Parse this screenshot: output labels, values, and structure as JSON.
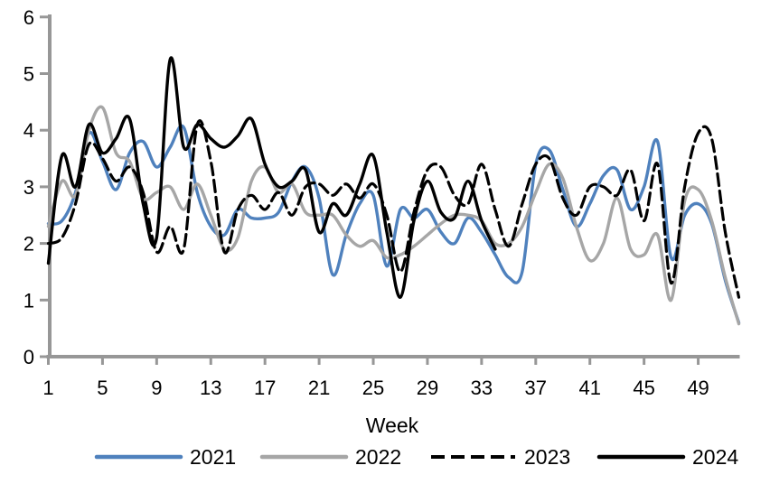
{
  "chart_data": {
    "type": "line",
    "title": "",
    "xlabel": "Week",
    "ylabel": "",
    "x_ticks": [
      1,
      5,
      9,
      13,
      17,
      21,
      25,
      29,
      33,
      37,
      41,
      45,
      49
    ],
    "y_ticks": [
      0,
      1,
      2,
      3,
      4,
      5,
      6
    ],
    "xlim": [
      1,
      52
    ],
    "ylim": [
      0,
      6
    ],
    "grid": false,
    "smoothed_lines": true,
    "legend_position": "bottom",
    "axis_color": "#979797",
    "series": [
      {
        "name": "2021",
        "color": "#4F81BD",
        "dash": "solid",
        "start_week": 1,
        "values": [
          2.35,
          2.4,
          2.9,
          3.95,
          3.45,
          2.95,
          3.6,
          3.8,
          3.35,
          3.7,
          4.05,
          2.9,
          2.3,
          2.15,
          2.6,
          2.45,
          2.45,
          2.55,
          3.1,
          3.35,
          2.8,
          1.45,
          2.15,
          2.7,
          2.85,
          1.6,
          2.6,
          2.45,
          2.6,
          2.2,
          2.0,
          2.45,
          2.2,
          1.8,
          1.4,
          1.5,
          3.4,
          3.65,
          2.95,
          2.3,
          2.7,
          3.2,
          3.3,
          2.6,
          3.0,
          3.8,
          1.75,
          2.5,
          2.7,
          2.35,
          1.35,
          0.6
        ]
      },
      {
        "name": "2022",
        "color": "#A6A6A6",
        "dash": "solid",
        "start_week": 1,
        "values": [
          2.3,
          3.1,
          2.85,
          4.0,
          4.4,
          3.6,
          3.45,
          2.8,
          2.9,
          3.0,
          2.6,
          3.05,
          2.5,
          1.9,
          2.1,
          3.1,
          3.35,
          2.9,
          3.05,
          2.55,
          2.5,
          2.5,
          2.15,
          1.95,
          2.05,
          1.75,
          1.8,
          1.95,
          2.15,
          2.35,
          2.5,
          2.5,
          2.4,
          2.0,
          2.0,
          2.3,
          2.9,
          3.4,
          3.15,
          2.3,
          1.7,
          2.0,
          2.8,
          1.9,
          1.8,
          2.15,
          1.0,
          2.75,
          2.95,
          2.4,
          1.4,
          0.58
        ]
      },
      {
        "name": "2023",
        "color": "#000000",
        "dash": "dashed",
        "start_week": 1,
        "values": [
          2.0,
          2.1,
          2.7,
          3.75,
          3.5,
          3.1,
          3.35,
          2.9,
          1.85,
          2.3,
          1.9,
          4.1,
          3.45,
          1.85,
          2.6,
          2.85,
          2.6,
          2.9,
          2.5,
          3.0,
          3.05,
          2.85,
          3.05,
          2.8,
          3.05,
          2.5,
          1.5,
          2.55,
          3.3,
          3.35,
          2.85,
          2.7,
          3.4,
          2.6,
          1.95,
          2.7,
          3.4,
          3.5,
          2.8,
          2.5,
          3.0,
          3.0,
          2.85,
          3.3,
          2.4,
          3.4,
          1.3,
          3.0,
          3.95,
          3.85,
          2.2,
          1.05
        ]
      },
      {
        "name": "2024",
        "color": "#000000",
        "dash": "solid",
        "start_week": 1,
        "values": [
          1.65,
          3.55,
          3.0,
          4.1,
          3.6,
          3.85,
          4.2,
          2.7,
          2.1,
          5.25,
          3.7,
          4.1,
          3.85,
          3.7,
          3.9,
          4.2,
          3.4,
          3.0,
          3.1,
          3.3,
          2.2,
          2.7,
          2.5,
          3.05,
          3.55,
          2.2,
          1.05,
          2.4,
          3.1,
          2.55,
          2.45,
          3.1,
          2.4,
          1.9
        ]
      }
    ]
  }
}
